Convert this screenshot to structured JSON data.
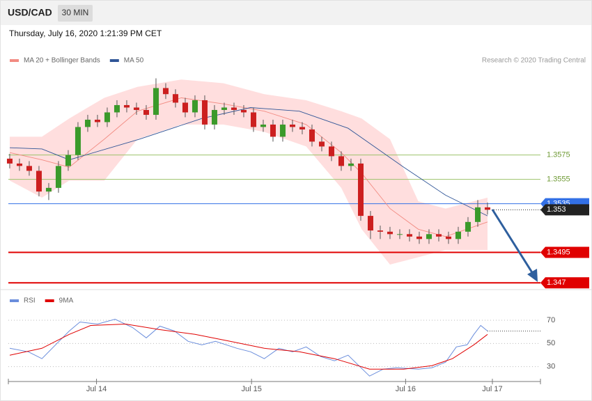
{
  "header": {
    "symbol": "USD/CAD",
    "timeframe": "30 MIN",
    "timestamp": "Thursday, July 16, 2020 1:21:39 PM CET",
    "credit": "Research © 2020 Trading Central"
  },
  "chart_data": [
    {
      "type": "candlestick",
      "x": [
        0,
        1,
        2,
        3,
        4,
        5,
        6,
        7,
        8,
        9,
        10,
        11,
        12,
        13,
        14,
        15,
        16,
        17,
        18,
        19,
        20,
        21,
        22,
        23,
        24,
        25,
        26,
        27,
        28,
        29,
        30,
        31,
        32,
        33,
        34,
        35,
        36,
        37,
        38,
        39,
        40,
        41,
        42,
        43,
        44,
        45,
        46,
        47,
        48,
        49
      ],
      "open": [
        1.3572,
        1.3568,
        1.3566,
        1.3562,
        1.3545,
        1.3548,
        1.3566,
        1.3575,
        1.3598,
        1.3604,
        1.3602,
        1.361,
        1.3616,
        1.3614,
        1.3612,
        1.3608,
        1.363,
        1.3625,
        1.3618,
        1.361,
        1.362,
        1.36,
        1.3612,
        1.3614,
        1.3612,
        1.361,
        1.3598,
        1.36,
        1.359,
        1.36,
        1.3598,
        1.3596,
        1.3586,
        1.3582,
        1.3574,
        1.3566,
        1.3568,
        1.3525,
        1.3513,
        1.3512,
        1.351,
        1.351,
        1.3508,
        1.3506,
        1.351,
        1.3508,
        1.3506,
        1.3512,
        1.352,
        1.3532
      ],
      "high": [
        1.3576,
        1.3572,
        1.357,
        1.3566,
        1.3552,
        1.357,
        1.3579,
        1.3602,
        1.3608,
        1.3608,
        1.3614,
        1.362,
        1.362,
        1.3618,
        1.3616,
        1.3638,
        1.3634,
        1.3629,
        1.3622,
        1.3624,
        1.3624,
        1.3616,
        1.3618,
        1.3618,
        1.3616,
        1.3614,
        1.3604,
        1.3604,
        1.3604,
        1.3604,
        1.3602,
        1.36,
        1.359,
        1.3586,
        1.3578,
        1.3572,
        1.3572,
        1.3529,
        1.3517,
        1.3516,
        1.3514,
        1.3514,
        1.3512,
        1.3514,
        1.3514,
        1.3512,
        1.3516,
        1.3524,
        1.3538,
        1.3536
      ],
      "low": [
        1.3564,
        1.3562,
        1.3558,
        1.3541,
        1.3538,
        1.3544,
        1.3562,
        1.3571,
        1.3594,
        1.3598,
        1.3598,
        1.3606,
        1.361,
        1.3608,
        1.3604,
        1.3604,
        1.3621,
        1.3614,
        1.3606,
        1.3606,
        1.3596,
        1.3596,
        1.3608,
        1.3608,
        1.3606,
        1.3594,
        1.3594,
        1.3586,
        1.3586,
        1.3594,
        1.3592,
        1.3582,
        1.3578,
        1.357,
        1.3562,
        1.3562,
        1.3521,
        1.3506,
        1.3506,
        1.3506,
        1.3506,
        1.3504,
        1.3502,
        1.3502,
        1.3504,
        1.3502,
        1.3502,
        1.3508,
        1.3516,
        1.3526
      ],
      "close": [
        1.3568,
        1.3566,
        1.3562,
        1.3545,
        1.3548,
        1.3566,
        1.3575,
        1.3598,
        1.3604,
        1.3602,
        1.361,
        1.3616,
        1.3614,
        1.3612,
        1.3608,
        1.363,
        1.3625,
        1.3618,
        1.361,
        1.362,
        1.36,
        1.3612,
        1.3614,
        1.3612,
        1.361,
        1.3598,
        1.36,
        1.359,
        1.36,
        1.3598,
        1.3596,
        1.3586,
        1.3582,
        1.3574,
        1.3566,
        1.3568,
        1.3525,
        1.3513,
        1.3512,
        1.351,
        1.351,
        1.3508,
        1.3506,
        1.351,
        1.3508,
        1.3506,
        1.3512,
        1.352,
        1.3532,
        1.353
      ],
      "up_color": "#3a9a2a",
      "down_color": "#cc1f1f",
      "series": [
        {
          "name": "MA 20 + Bollinger Bands",
          "color": "#f28b82",
          "band_color": "#ffdede",
          "x": [
            0,
            3.3,
            6.1,
            9.7,
            13.1,
            17.6,
            21.9,
            26.1,
            30.4,
            34,
            36.1,
            39,
            41.9,
            44.7,
            49
          ],
          "values": [
            1.3577,
            1.3571,
            1.3565,
            1.3588,
            1.3611,
            1.3622,
            1.3617,
            1.3611,
            1.36,
            1.3577,
            1.356,
            1.3531,
            1.3514,
            1.3508,
            1.352
          ],
          "upper": [
            1.359,
            1.359,
            1.3605,
            1.3622,
            1.3631,
            1.3637,
            1.3634,
            1.3625,
            1.362,
            1.3611,
            1.3605,
            1.3588,
            1.3537,
            1.3531,
            1.354
          ],
          "lower": [
            1.3554,
            1.354,
            1.3554,
            1.3554,
            1.3588,
            1.36,
            1.36,
            1.3594,
            1.3582,
            1.3548,
            1.3514,
            1.3485,
            1.3491,
            1.3497,
            1.3497
          ]
        },
        {
          "name": "MA 50",
          "color": "#2f5597",
          "x": [
            0,
            3.3,
            6.1,
            13.3,
            19.7,
            24.7,
            29.7,
            34.7,
            40.4,
            44.7,
            49
          ],
          "values": [
            1.3581,
            1.358,
            1.3571,
            1.3588,
            1.3605,
            1.3614,
            1.3611,
            1.3597,
            1.3565,
            1.3542,
            1.3525
          ]
        }
      ],
      "levels": [
        {
          "value": 1.3575,
          "color": "#9cc36a",
          "style": "plain"
        },
        {
          "value": 1.3555,
          "color": "#9cc36a",
          "style": "plain"
        },
        {
          "value": 1.3535,
          "color": "#3370e6",
          "style": "box"
        },
        {
          "value": 1.353,
          "color": "#222222",
          "style": "dotted"
        },
        {
          "value": 1.3495,
          "color": "#e00000",
          "style": "box"
        },
        {
          "value": 1.347,
          "color": "#e00000",
          "style": "box"
        }
      ],
      "xlim": [
        -0.14,
        54.43
      ],
      "ylim": [
        1.3465,
        1.3648
      ]
    },
    {
      "type": "line",
      "series": [
        {
          "name": "RSI",
          "color": "#6a8ddc",
          "x": [
            0,
            1.9,
            3.3,
            4.7,
            6.1,
            7.2,
            9,
            10.8,
            12.6,
            14,
            15.4,
            16.9,
            18.3,
            19.7,
            21.1,
            23.3,
            24.7,
            26.1,
            27.6,
            29,
            30.4,
            31.9,
            33.3,
            34.7,
            35.8,
            36.9,
            38.3,
            39.7,
            41.9,
            43.3,
            44.7,
            45.8,
            46.9,
            47.6,
            48.3,
            49
          ],
          "values": [
            45.8,
            42.8,
            36.9,
            48.8,
            60.7,
            68.5,
            66.7,
            70.9,
            63.7,
            54.8,
            64.9,
            60.7,
            51.8,
            48.8,
            51.8,
            45.8,
            42.8,
            36.9,
            45.8,
            42.8,
            47,
            38.7,
            35.1,
            39.9,
            30.9,
            21.9,
            27.9,
            29.1,
            27.9,
            29.1,
            33.9,
            47,
            48.8,
            57.8,
            65.5,
            60.7
          ]
        },
        {
          "name": "9MA",
          "color": "#e00000",
          "x": [
            0,
            3.3,
            6.1,
            8.3,
            11.9,
            15.4,
            19,
            22.6,
            26.1,
            29.7,
            33.3,
            36.9,
            40.4,
            43.3,
            45.4,
            47.6,
            49
          ],
          "values": [
            39.9,
            45.8,
            57.8,
            65.5,
            66.7,
            61.9,
            57.8,
            51.8,
            45.8,
            42.8,
            36.9,
            27.9,
            27.9,
            30.9,
            36.9,
            48.8,
            57.8
          ]
        }
      ],
      "xlim": [
        -0.14,
        54.43
      ],
      "ylim": [
        19,
        91
      ],
      "yticks": [
        30,
        50,
        70
      ],
      "xticks": [
        {
          "value": 8.9,
          "label": "Jul 14"
        },
        {
          "value": 24.8,
          "label": "Jul 15"
        },
        {
          "value": 40.6,
          "label": "Jul 16"
        },
        {
          "value": 49.5,
          "label": "Jul 17"
        }
      ]
    }
  ]
}
